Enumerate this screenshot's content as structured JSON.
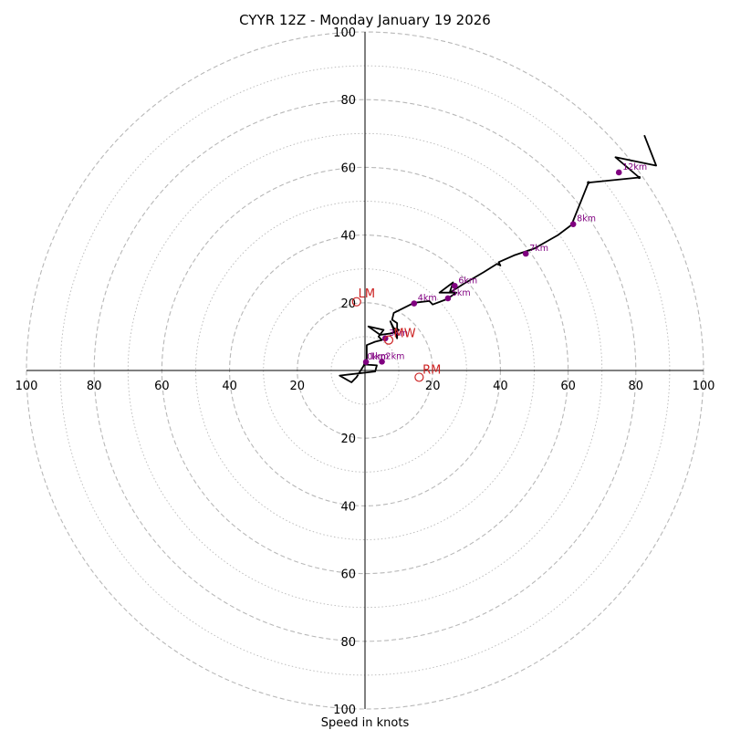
{
  "chart_data": {
    "type": "hodograph",
    "title": "CYYR 12Z - Monday January 19 2026",
    "xlabel": "Speed in knots",
    "max_speed": 100,
    "ring_major": [
      20,
      40,
      60,
      80,
      100
    ],
    "ring_minor": [
      10,
      30,
      50,
      70,
      90
    ],
    "tick_labels": {
      "right": [
        "20",
        "40",
        "60",
        "80",
        "100"
      ],
      "left": [
        "20",
        "40",
        "60",
        "80",
        "100"
      ],
      "up": [
        "20",
        "40",
        "60",
        "80",
        "100"
      ],
      "down": [
        "20",
        "40",
        "60",
        "80",
        "100"
      ]
    },
    "trace_uv": [
      [
        -0.5,
        1.8
      ],
      [
        3.5,
        1.5
      ],
      [
        3.0,
        -0.3
      ],
      [
        -7.5,
        -1.5
      ],
      [
        -4.0,
        -3.5
      ],
      [
        -2.5,
        -2.0
      ],
      [
        -0.5,
        1.2
      ],
      [
        0.5,
        3.0
      ],
      [
        0.5,
        7.5
      ],
      [
        3.0,
        8.5
      ],
      [
        5.0,
        9.0
      ],
      [
        4.0,
        10.0
      ],
      [
        5.5,
        12.0
      ],
      [
        1.0,
        13.0
      ],
      [
        4.5,
        10.5
      ],
      [
        8.0,
        11.0
      ],
      [
        10.0,
        12.0
      ],
      [
        8.5,
        12.5
      ],
      [
        7.5,
        14.5
      ],
      [
        9.5,
        9.5
      ],
      [
        9.5,
        14.0
      ],
      [
        8.0,
        15.0
      ],
      [
        8.5,
        17.0
      ],
      [
        14.5,
        20.0
      ],
      [
        19.0,
        20.5
      ],
      [
        20.0,
        19.5
      ],
      [
        24.0,
        21.0
      ],
      [
        27.0,
        23.0
      ],
      [
        22.0,
        23.0
      ],
      [
        26.0,
        26.0
      ],
      [
        25.0,
        23.0
      ],
      [
        29.0,
        25.5
      ],
      [
        35.0,
        29.0
      ],
      [
        39.0,
        31.5
      ],
      [
        40.0,
        31.0
      ],
      [
        39.5,
        32.0
      ],
      [
        44.0,
        34.0
      ],
      [
        50.0,
        36.0
      ],
      [
        57.0,
        40.0
      ],
      [
        61.0,
        43.0
      ],
      [
        66.0,
        55.5
      ],
      [
        81.0,
        57.0
      ],
      [
        74.0,
        63.0
      ],
      [
        86.0,
        60.5
      ],
      [
        82.5,
        69.5
      ]
    ],
    "height_markers": [
      {
        "label": "1km",
        "u": 0.3,
        "v": 2.5
      },
      {
        "label": "2km",
        "u": 5.0,
        "v": 2.6
      },
      {
        "label": "3km",
        "u": 6.0,
        "v": 9.5
      },
      {
        "label": "4km",
        "u": 14.5,
        "v": 19.8
      },
      {
        "label": "5km",
        "u": 24.5,
        "v": 21.3
      },
      {
        "label": "6km",
        "u": 26.5,
        "v": 25.0
      },
      {
        "label": "7km",
        "u": 47.5,
        "v": 34.5
      },
      {
        "label": "8km",
        "u": 61.5,
        "v": 43.2
      },
      {
        "label": "12km",
        "u": 75.0,
        "v": 58.5
      }
    ],
    "sfc_label": "0km",
    "motion_points": [
      {
        "label": "LM",
        "u": -2.5,
        "v": 20.3,
        "label_dx": 0.5,
        "label_dy": 1.2
      },
      {
        "label": "RM",
        "u": 16.0,
        "v": -2.0,
        "label_dx": 1.0,
        "label_dy": 1.0
      },
      {
        "label": "MW",
        "u": 7.0,
        "v": 9.0,
        "label_dx": 1.5,
        "label_dy": 0.8
      }
    ],
    "colors": {
      "trace": "#000000",
      "height_marker": "#800080",
      "motion": "#cc2222",
      "ring": "#b8b8b8",
      "axis": "#000000"
    }
  }
}
